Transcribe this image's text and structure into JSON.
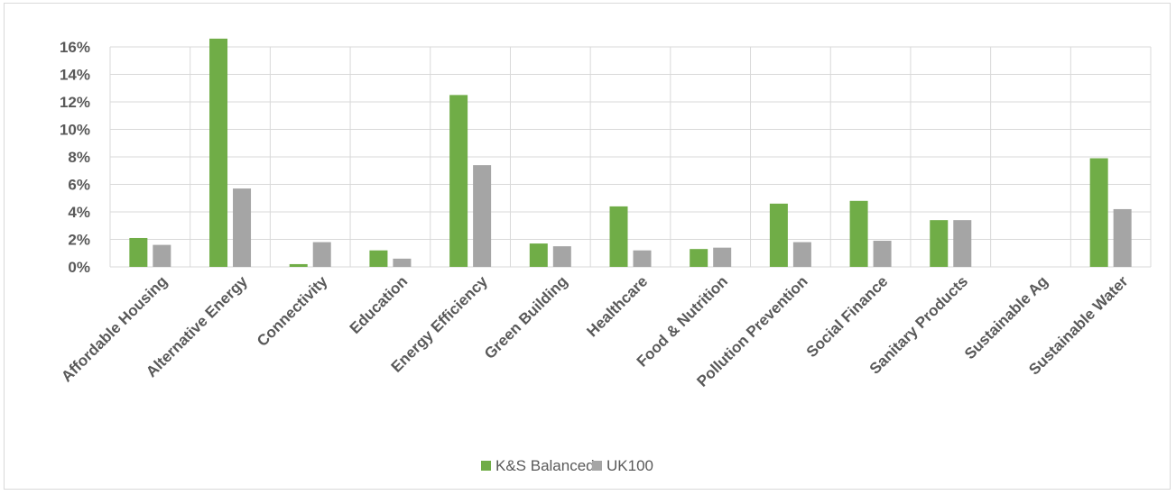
{
  "chart_data": {
    "type": "bar",
    "categories": [
      "Affordable Housing",
      "Alternative Energy",
      "Connectivity",
      "Education",
      "Energy Efficiency",
      "Green Building",
      "Healthcare",
      "Food & Nutrition",
      "Pollution Prevention",
      "Social Finance",
      "Sanitary Products",
      "Sustainable Ag",
      "Sustainable Water"
    ],
    "series": [
      {
        "name": "K&S Balanced",
        "color": "#70ad47",
        "values": [
          2.1,
          16.6,
          0.2,
          1.2,
          12.5,
          1.7,
          4.4,
          1.3,
          4.6,
          4.8,
          3.4,
          0,
          7.9
        ]
      },
      {
        "name": "UK100",
        "color": "#a5a5a5",
        "values": [
          1.6,
          5.7,
          1.8,
          0.6,
          7.4,
          1.5,
          1.2,
          1.4,
          1.8,
          1.9,
          3.4,
          0,
          4.2
        ]
      }
    ],
    "ylim": [
      0,
      16
    ],
    "yticks": [
      "0%",
      "2%",
      "4%",
      "6%",
      "8%",
      "10%",
      "12%",
      "14%",
      "16%"
    ],
    "grid": true,
    "legend_position": "bottom"
  }
}
